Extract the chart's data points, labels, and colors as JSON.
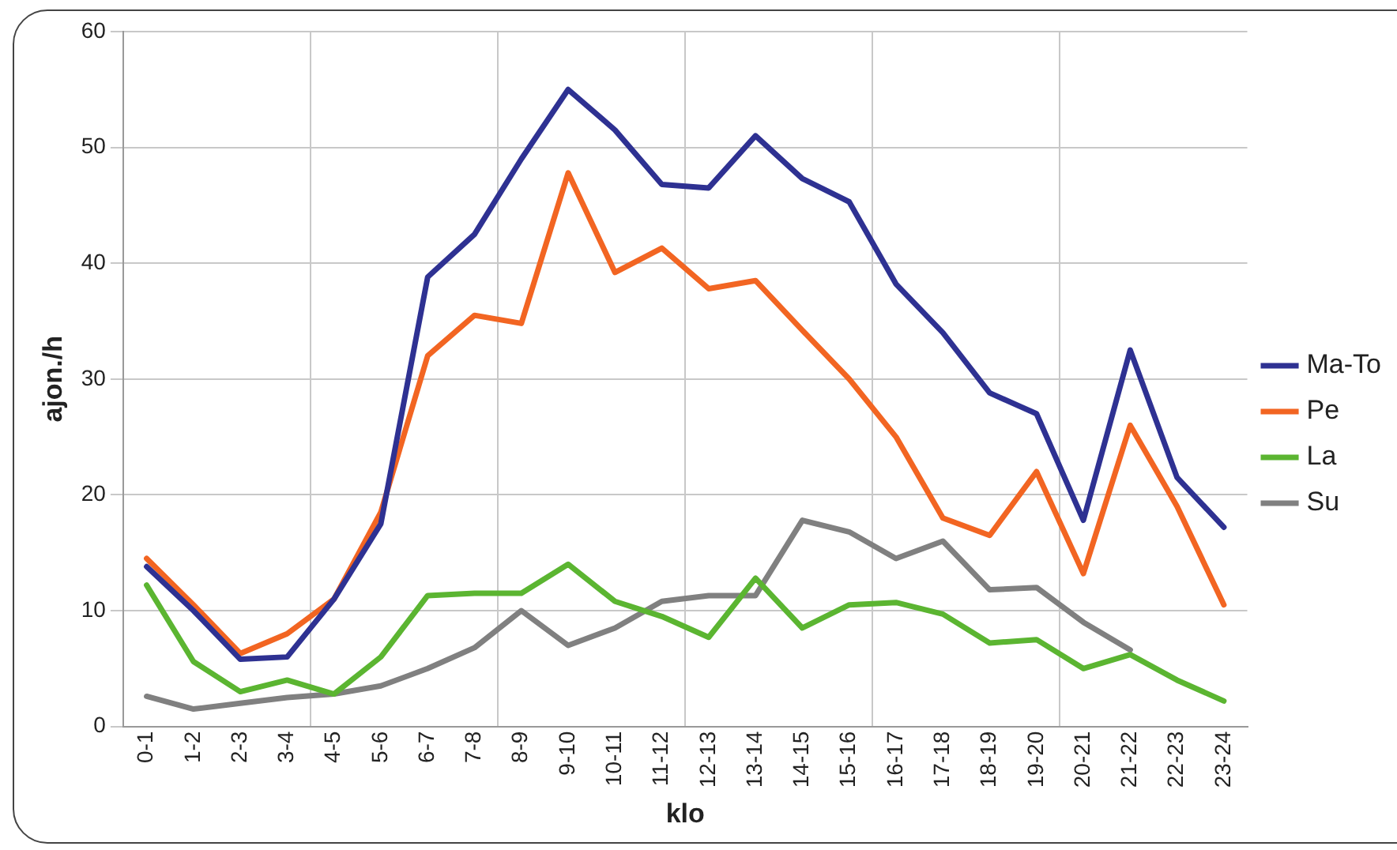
{
  "chart_data": {
    "type": "line",
    "xlabel": "klo",
    "ylabel": "ajon./h",
    "categories": [
      "0-1",
      "1-2",
      "2-3",
      "3-4",
      "4-5",
      "5-6",
      "6-7",
      "7-8",
      "8-9",
      "9-10",
      "10-11",
      "11-12",
      "12-13",
      "13-14",
      "14-15",
      "15-16",
      "16-17",
      "17-18",
      "18-19",
      "19-20",
      "20-21",
      "21-22",
      "22-23",
      "23-24"
    ],
    "series": [
      {
        "name": "Ma-To",
        "color": "#2e3192",
        "values": [
          13.8,
          10,
          5.8,
          6,
          11,
          17.5,
          38.8,
          42.5,
          49,
          55,
          51.5,
          46.8,
          46.5,
          51,
          47.3,
          45.3,
          38.2,
          34,
          28.8,
          27,
          17.8,
          32.5,
          21.5,
          17.2
        ]
      },
      {
        "name": "Pe",
        "color": "#f26522",
        "values": [
          14.5,
          10.5,
          6.3,
          8,
          11,
          18.5,
          32,
          35.5,
          34.8,
          47.8,
          39.2,
          41.3,
          37.8,
          38.5,
          34.2,
          30,
          25,
          18,
          16.5,
          22,
          13.2,
          26,
          19,
          10.5
        ]
      },
      {
        "name": "La",
        "color": "#5bb531",
        "values": [
          12.2,
          5.6,
          3,
          4,
          2.8,
          6,
          11.3,
          11.5,
          11.5,
          14,
          10.8,
          9.5,
          7.7,
          12.8,
          8.5,
          10.5,
          10.7,
          9.7,
          7.2,
          7.5,
          5,
          6.2,
          4,
          2.2
        ]
      },
      {
        "name": "Su",
        "color": "#808080",
        "values": [
          2.6,
          1.5,
          2,
          2.5,
          2.8,
          3.5,
          5,
          6.8,
          10,
          7,
          8.5,
          10.8,
          11.3,
          11.3,
          17.8,
          16.8,
          14.5,
          16,
          11.8,
          12,
          9,
          6.6,
          null,
          null
        ]
      }
    ],
    "ylim": [
      0,
      60
    ],
    "yticks": [
      0,
      10,
      20,
      30,
      40,
      50,
      60
    ],
    "grid": true,
    "legend": "right",
    "marker": "none",
    "line_style": "solid"
  }
}
